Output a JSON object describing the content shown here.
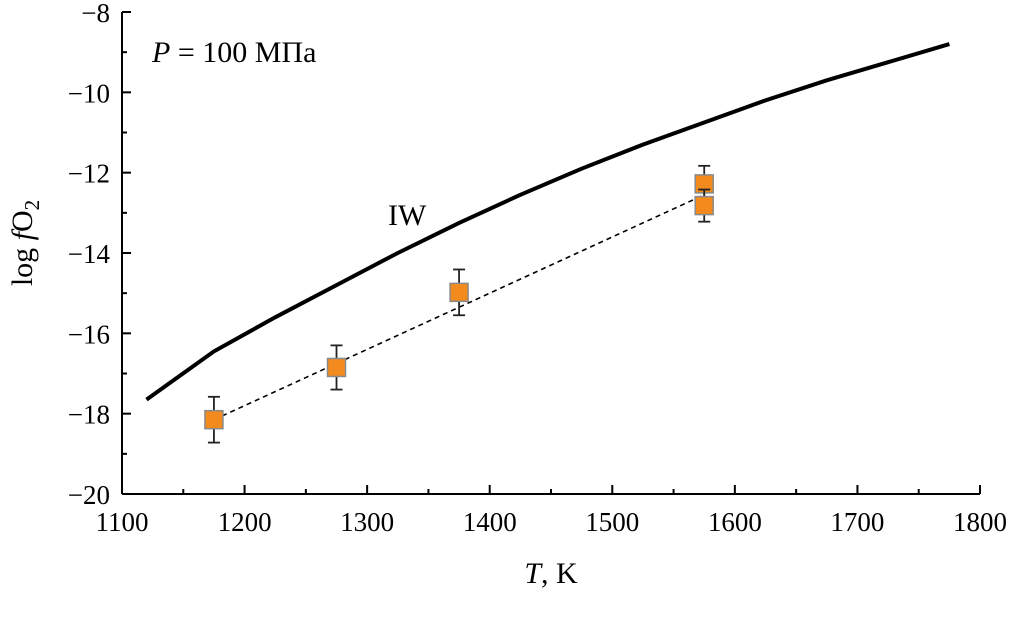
{
  "chart_data": {
    "type": "scatter",
    "xlabel": {
      "symbol": "T",
      "rest": ", K"
    },
    "ylabel": {
      "prefix": "log ",
      "symbol": "f",
      "base": "O",
      "subscript": "2"
    },
    "xlim": [
      1100,
      1800
    ],
    "ylim": [
      -20,
      -8
    ],
    "x_ticks": [
      1100,
      1200,
      1300,
      1400,
      1500,
      1600,
      1700,
      1800
    ],
    "x_tick_labels": [
      "1100",
      "1200",
      "1300",
      "1400",
      "1500",
      "1600",
      "1700",
      "1800"
    ],
    "y_ticks": [
      -8,
      -10,
      -12,
      -14,
      -16,
      -18,
      -20
    ],
    "y_tick_labels": [
      "−8",
      "−10",
      "−12",
      "−14",
      "−16",
      "−18",
      "−20"
    ],
    "annotations": {
      "pressure": {
        "symbol": "P",
        "rest": " = 100 МПа"
      },
      "curve_label": "IW"
    },
    "grid": false,
    "series": [
      {
        "kind": "line",
        "x": [
          1120,
          1175,
          1225,
          1275,
          1325,
          1375,
          1425,
          1475,
          1525,
          1575,
          1625,
          1675,
          1725,
          1775
        ],
        "y": [
          -17.65,
          -16.45,
          -15.6,
          -14.8,
          -14.0,
          -13.25,
          -12.55,
          -11.9,
          -11.3,
          -10.75,
          -10.2,
          -9.7,
          -9.25,
          -8.8
        ],
        "color": "#000000"
      },
      {
        "kind": "points",
        "x": [
          1175,
          1275,
          1375,
          1575,
          1575
        ],
        "y": [
          -18.15,
          -16.85,
          -14.98,
          -12.28,
          -12.82
        ],
        "err_low": [
          0.57,
          0.55,
          0.57,
          0.45,
          0.4
        ],
        "err_high": [
          0.57,
          0.55,
          0.57,
          0.45,
          0.4
        ],
        "color": "#f28a1e"
      },
      {
        "kind": "dashed-fit",
        "x": [
          1175,
          1575
        ],
        "y": [
          -18.15,
          -12.55
        ],
        "color": "#000000"
      }
    ]
  }
}
